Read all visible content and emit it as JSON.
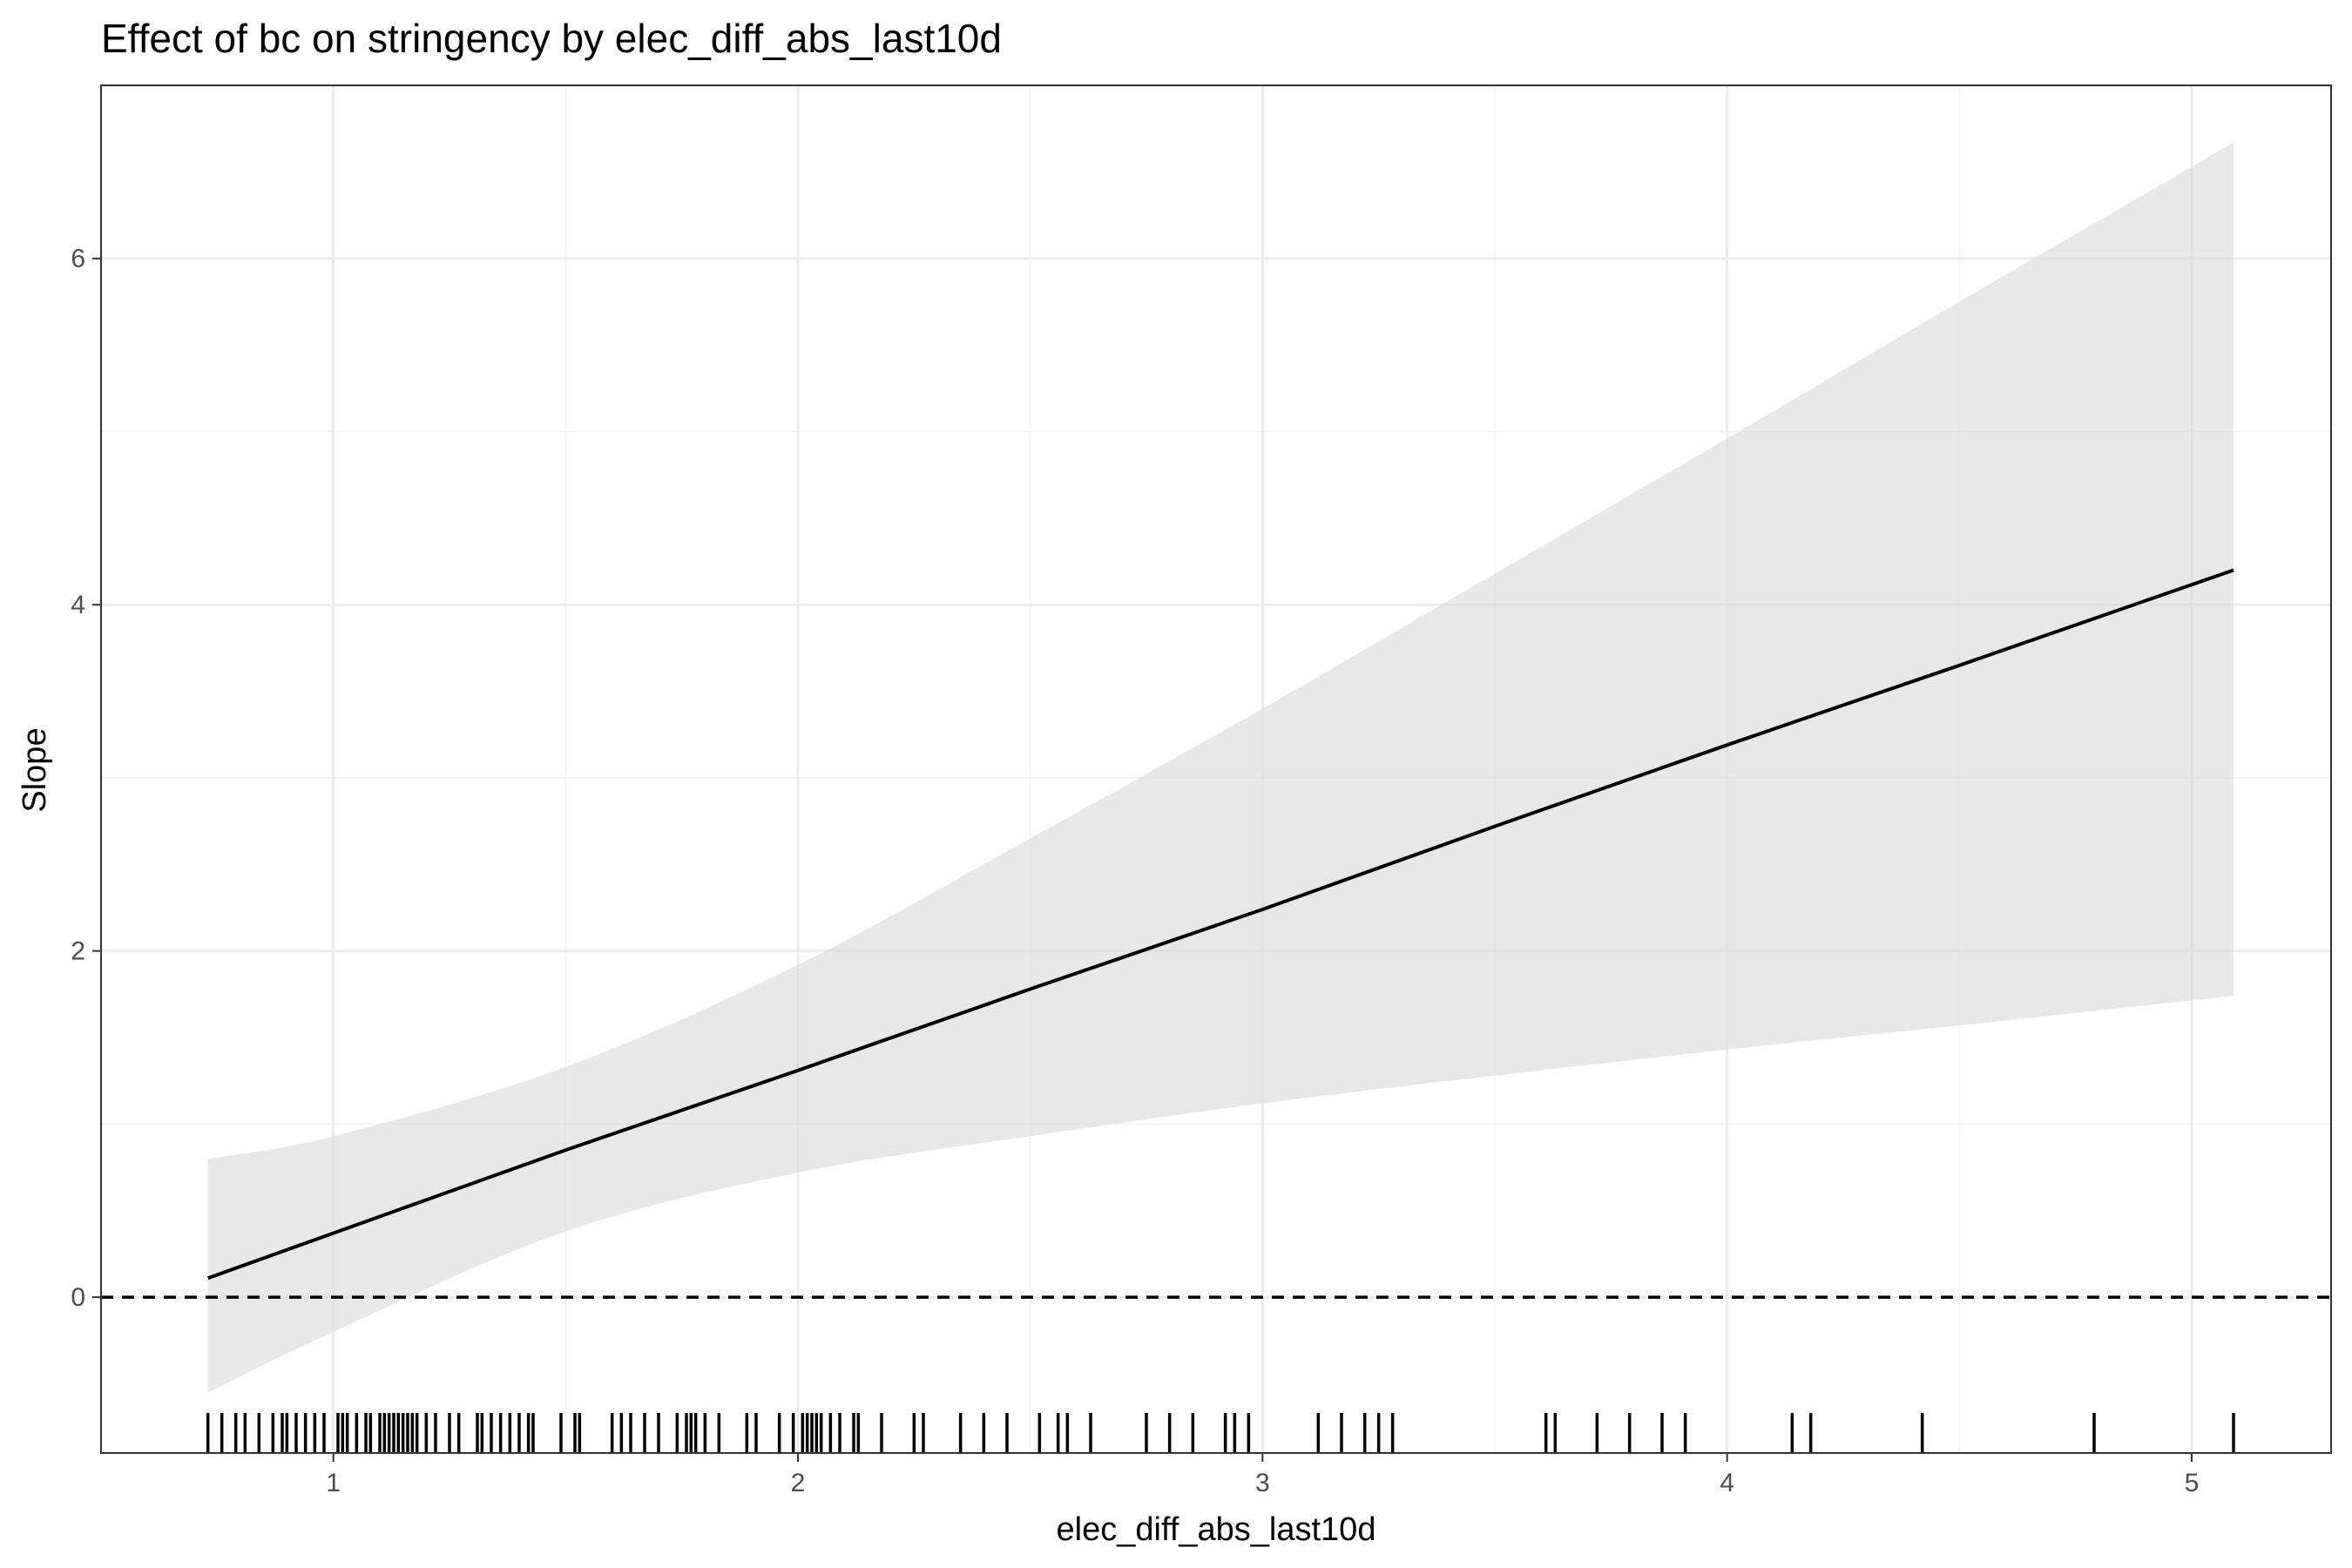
{
  "chart_data": {
    "type": "line",
    "title": "Effect of bc on stringency by elec_diff_abs_last10d",
    "xlabel": "elec_diff_abs_last10d",
    "ylabel": "Slope",
    "xlim": [
      0.5,
      5.3
    ],
    "ylim": [
      -0.9,
      7.0
    ],
    "x_ticks": [
      1,
      2,
      3,
      4,
      5
    ],
    "y_ticks": [
      0,
      2,
      4,
      6
    ],
    "grid": true,
    "legend": "none",
    "colors": {
      "line": "#000000",
      "ribbon": "#d9d9d9",
      "grid_major": "#ebebeb",
      "grid_minor": "#f3f3f3",
      "panel_border": "#333333"
    },
    "series": [
      {
        "x": [
          0.73,
          1.0,
          1.5,
          2.0,
          2.5,
          3.0,
          3.5,
          4.0,
          4.5,
          5.09
        ],
        "y": [
          0.11,
          0.37,
          0.85,
          1.31,
          1.78,
          2.24,
          2.72,
          3.19,
          3.65,
          4.2
        ],
        "lower": [
          -0.55,
          -0.2,
          0.38,
          0.72,
          0.93,
          1.12,
          1.28,
          1.43,
          1.57,
          1.74
        ],
        "upper": [
          0.8,
          0.93,
          1.33,
          1.92,
          2.65,
          3.4,
          4.18,
          4.96,
          5.75,
          6.67
        ]
      }
    ],
    "reference_line": {
      "y": 0,
      "style": "dashed"
    },
    "rug_x": [
      0.73,
      0.76,
      0.79,
      0.81,
      0.84,
      0.87,
      0.89,
      0.9,
      0.92,
      0.94,
      0.96,
      0.98,
      1.01,
      1.02,
      1.03,
      1.05,
      1.07,
      1.08,
      1.1,
      1.11,
      1.12,
      1.13,
      1.14,
      1.15,
      1.16,
      1.17,
      1.18,
      1.2,
      1.22,
      1.25,
      1.27,
      1.31,
      1.32,
      1.34,
      1.36,
      1.38,
      1.4,
      1.42,
      1.43,
      1.49,
      1.52,
      1.53,
      1.6,
      1.62,
      1.64,
      1.67,
      1.7,
      1.74,
      1.76,
      1.77,
      1.78,
      1.8,
      1.83,
      1.89,
      1.91,
      1.96,
      1.99,
      2.01,
      2.02,
      2.03,
      2.04,
      2.05,
      2.07,
      2.09,
      2.12,
      2.13,
      2.18,
      2.25,
      2.27,
      2.35,
      2.4,
      2.45,
      2.52,
      2.56,
      2.58,
      2.63,
      2.75,
      2.8,
      2.85,
      2.92,
      2.94,
      2.97,
      3.12,
      3.17,
      3.22,
      3.25,
      3.28,
      3.61,
      3.63,
      3.72,
      3.79,
      3.86,
      3.91,
      4.14,
      4.18,
      4.42,
      4.79,
      5.09
    ]
  }
}
